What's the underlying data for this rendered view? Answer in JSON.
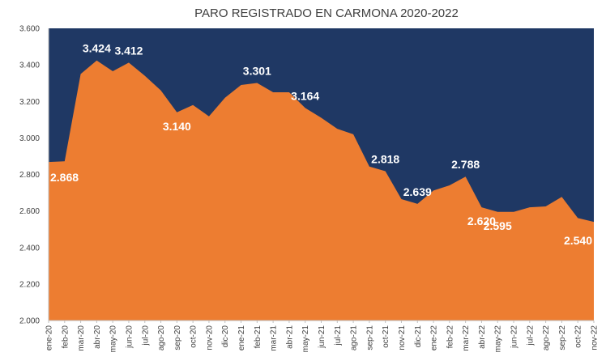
{
  "chart_data": {
    "type": "area",
    "title": "PARO REGISTRADO EN CARMONA 2020-2022",
    "xlabel": "",
    "ylabel": "",
    "ylim": [
      2000,
      3600
    ],
    "yticks": [
      2000,
      2200,
      2400,
      2600,
      2800,
      3000,
      3200,
      3400,
      3600
    ],
    "ytick_labels": [
      "2.000",
      "2.200",
      "2.400",
      "2.600",
      "2.800",
      "3.000",
      "3.200",
      "3.400",
      "3.600"
    ],
    "grid": false,
    "legend": "none",
    "categories": [
      "ene-20",
      "feb-20",
      "mar-20",
      "abr-20",
      "may-20",
      "jun-20",
      "jul-20",
      "ago-20",
      "sep-20",
      "oct-20",
      "nov-20",
      "dic-20",
      "ene-21",
      "feb-21",
      "mar-21",
      "abr-21",
      "may-21",
      "jun-21",
      "jul-21",
      "ago-21",
      "sep-21",
      "oct-21",
      "nov-21",
      "dic-21",
      "ene-22",
      "feb-22",
      "mar-22",
      "abr-22",
      "may-22",
      "jun-22",
      "jul-22",
      "ago-22",
      "sep-22",
      "oct-22",
      "nov-22"
    ],
    "series": [
      {
        "values": [
          2868,
          2872,
          3350,
          3424,
          3365,
          3412,
          3340,
          3260,
          3140,
          3180,
          3118,
          3220,
          3290,
          3301,
          3250,
          3250,
          3164,
          3110,
          3050,
          3020,
          2843,
          2818,
          2665,
          2639,
          2712,
          2740,
          2788,
          2620,
          2595,
          2595,
          2620,
          2625,
          2677,
          2561,
          2540
        ],
        "color": "#ED7D31"
      }
    ],
    "data_labels": [
      {
        "index": 0,
        "text": "2.868"
      },
      {
        "index": 3,
        "text": "3.424"
      },
      {
        "index": 5,
        "text": "3.412"
      },
      {
        "index": 8,
        "text": "3.140"
      },
      {
        "index": 13,
        "text": "3.301"
      },
      {
        "index": 16,
        "text": "3.164"
      },
      {
        "index": 21,
        "text": "2.818"
      },
      {
        "index": 23,
        "text": "2.639"
      },
      {
        "index": 26,
        "text": "2.788"
      },
      {
        "index": 27,
        "text": "2.620"
      },
      {
        "index": 28,
        "text": "2.595"
      },
      {
        "index": 34,
        "text": "2.540"
      }
    ],
    "colors": {
      "plot_background": "#1F3864",
      "area": "#ED7D31",
      "label": "#FFFFFF"
    }
  }
}
